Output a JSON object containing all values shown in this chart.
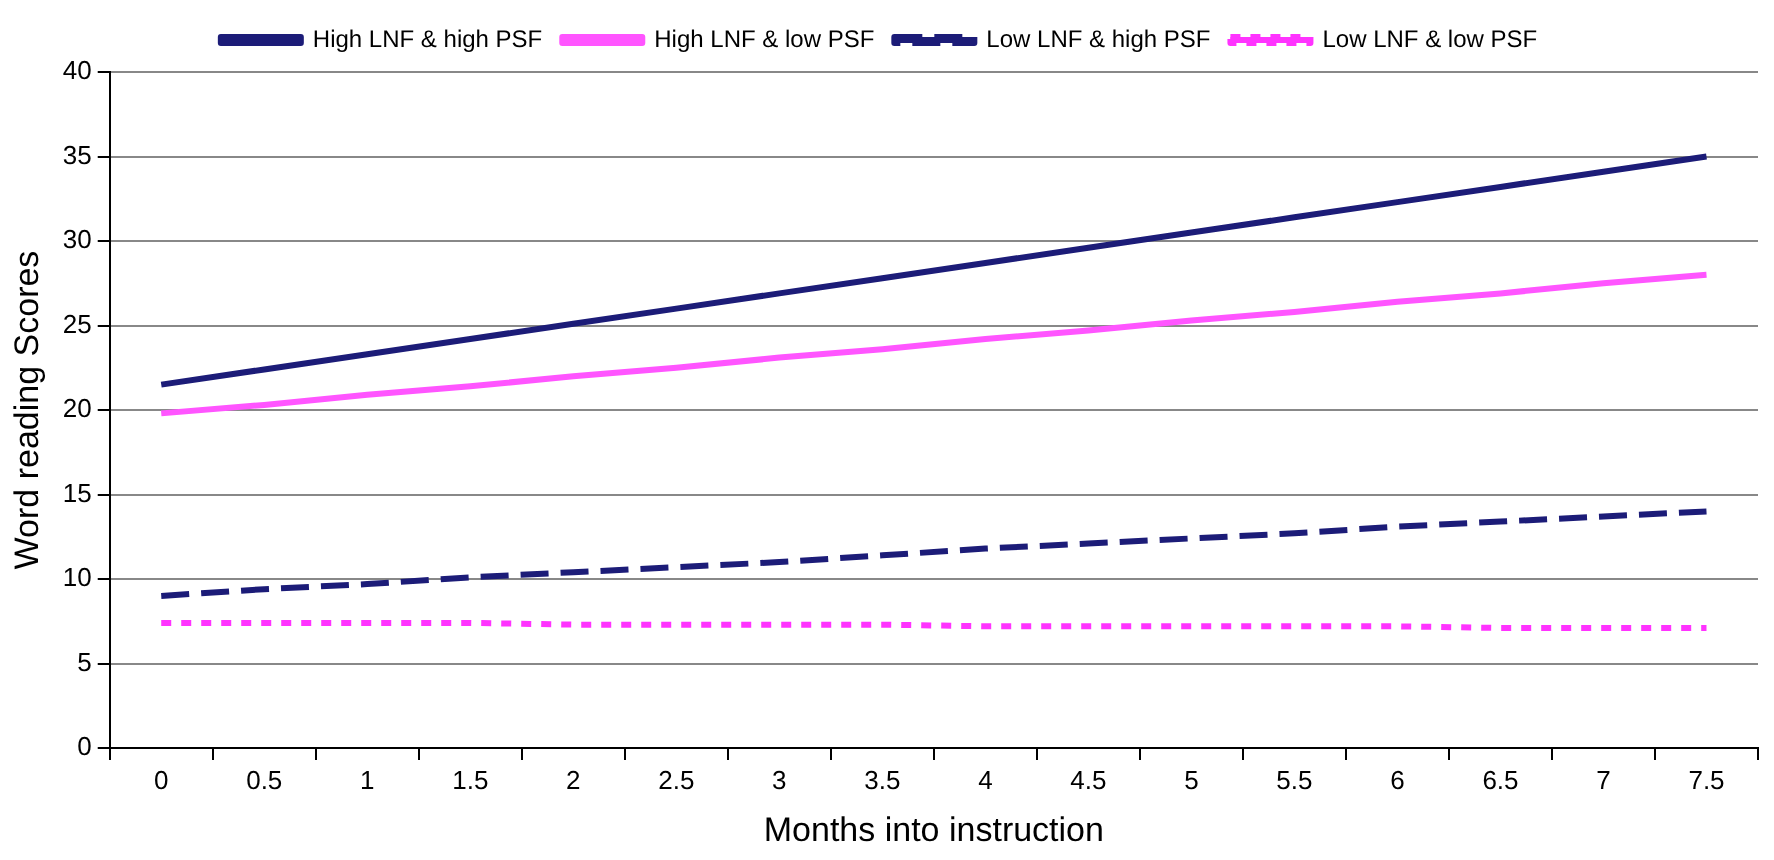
{
  "chart_data": {
    "type": "line",
    "xlabel": "Months into instruction",
    "ylabel": "Word reading Scores",
    "categories": [
      "0",
      "0.5",
      "1",
      "1.5",
      "2",
      "2.5",
      "3",
      "3.5",
      "4",
      "4.5",
      "5",
      "5.5",
      "6",
      "6.5",
      "7",
      "7.5"
    ],
    "series": [
      {
        "name": "High LNF & high PSF",
        "color": "#1c1c78",
        "line_style": "solid",
        "values": [
          21.5,
          22.4,
          23.3,
          24.2,
          25.1,
          26,
          26.9,
          27.8,
          28.7,
          29.6,
          30.5,
          31.4,
          32.3,
          33.2,
          34.1,
          35
        ]
      },
      {
        "name": "High LNF & low PSF",
        "color": "#ff55ff",
        "line_style": "solid",
        "values": [
          19.8,
          20.3,
          20.9,
          21.4,
          22,
          22.5,
          23.1,
          23.6,
          24.2,
          24.7,
          25.3,
          25.8,
          26.4,
          26.9,
          27.5,
          28
        ]
      },
      {
        "name": "Low LNF & high PSF",
        "color": "#1c1c78",
        "line_style": "dashed",
        "values": [
          9,
          9.4,
          9.7,
          10.1,
          10.4,
          10.7,
          11,
          11.4,
          11.8,
          12.1,
          12.4,
          12.7,
          13.1,
          13.4,
          13.7,
          14
        ]
      },
      {
        "name": "Low LNF & low PSF",
        "color": "#ff33ff",
        "line_style": "dotted",
        "values": [
          7.4,
          7.4,
          7.4,
          7.4,
          7.3,
          7.3,
          7.3,
          7.3,
          7.2,
          7.2,
          7.2,
          7.2,
          7.2,
          7.1,
          7.1,
          7.1
        ]
      }
    ],
    "ylim": [
      0,
      40
    ],
    "yticks": [
      0,
      5,
      10,
      15,
      20,
      25,
      30,
      35,
      40
    ],
    "grid": "y",
    "legend": "top",
    "marker": "none"
  }
}
